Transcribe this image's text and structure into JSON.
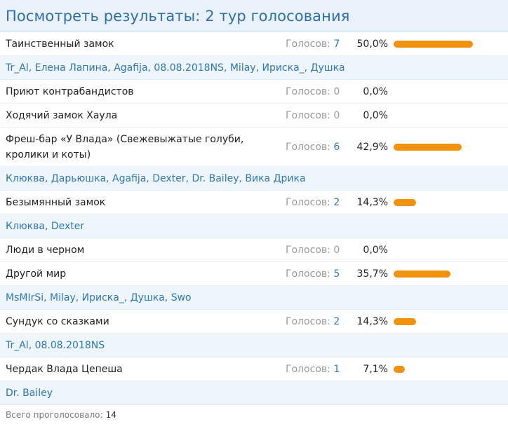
{
  "header": {
    "title": "Посмотреть результаты: 2 тур голосования"
  },
  "votes_label": "Голосов:",
  "options": [
    {
      "label": "Таинственный замок",
      "votes": "7",
      "percent": "50,0%",
      "fraction": 0.5,
      "voters": "Tr_Al, Елена Лапина, Agafija, 08.08.2018NS, Milay, Ириска_, Душка"
    },
    {
      "label": "Приют контрабандистов",
      "votes": "0",
      "percent": "0,0%",
      "fraction": 0
    },
    {
      "label": "Ходячий замок Хаула",
      "votes": "0",
      "percent": "0,0%",
      "fraction": 0
    },
    {
      "label": "Фреш-бар «У Влада» (Свежевыжатые голуби, кролики и коты)",
      "votes": "6",
      "percent": "42,9%",
      "fraction": 0.429,
      "voters": "Клюква, Дарьюшка, Agafija, Dexter, Dr. Bailey, Вика Дрика"
    },
    {
      "label": "Безымянный замок",
      "votes": "2",
      "percent": "14,3%",
      "fraction": 0.143,
      "voters": "Клюква, Dexter"
    },
    {
      "label": "Люди в черном",
      "votes": "0",
      "percent": "0,0%",
      "fraction": 0
    },
    {
      "label": "Другой мир",
      "votes": "5",
      "percent": "35,7%",
      "fraction": 0.357,
      "voters": "MsMIrSi, Milay, Ириска_, Душка, Swo"
    },
    {
      "label": "Сундук со сказками",
      "votes": "2",
      "percent": "14,3%",
      "fraction": 0.143,
      "voters": "Tr_Al, 08.08.2018NS"
    },
    {
      "label": "Чердак Влада Цепеша",
      "votes": "1",
      "percent": "7,1%",
      "fraction": 0.071,
      "voters": "Dr. Bailey"
    }
  ],
  "footer": {
    "label": "Всего проголосовало:",
    "total": "14"
  },
  "colors": {
    "bar": "#f0920c",
    "link": "#2f78b0",
    "header_bg": "#e9f2fa",
    "voters_bg": "#eef5fb"
  }
}
